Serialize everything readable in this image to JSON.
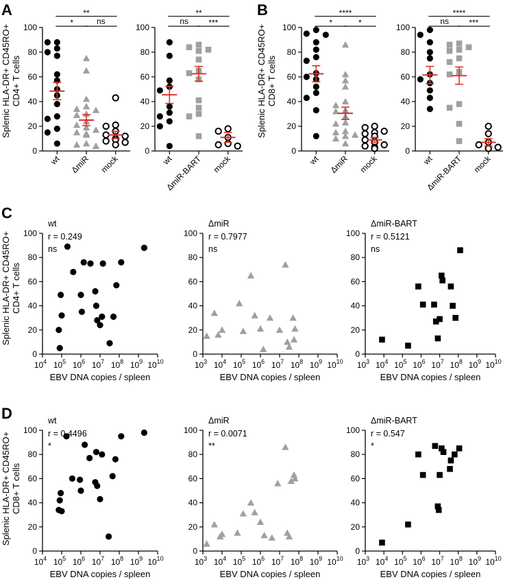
{
  "colors": {
    "black": "#000000",
    "gray": "#a0a0a0",
    "red": "#d9352a",
    "white": "#ffffff"
  },
  "panel_labels": {
    "A": "A",
    "B": "B",
    "C": "C",
    "D": "D"
  },
  "y_labels": {
    "A": [
      "Splenic HLA-DR+ CD45RO+",
      "CD4+ T cells"
    ],
    "B": [
      "Splenic HLA-DR+ CD45RO+",
      "CD8+ T cells"
    ],
    "C": [
      "Splenic HLA-DR+ CD45RO+",
      "CD4+ T cells"
    ],
    "D": [
      "Splenic HLA-DR+ CD45RO+",
      "CD8+ T cells"
    ]
  },
  "x_label": "EBV DNA copies / spleen",
  "chart_data": [
    {
      "id": "A1",
      "type": "scatter",
      "panel": "A",
      "ylim": [
        0,
        100
      ],
      "yticks": [
        0,
        20,
        40,
        60,
        80,
        100
      ],
      "categories": [
        "wt",
        "ΔmiR",
        "mock"
      ],
      "series": [
        {
          "name": "wt",
          "marker": "circle-filled",
          "color": "#000000",
          "mean": 48.5,
          "sem": 7,
          "values": [
            88,
            88,
            83,
            80,
            77,
            62,
            57,
            50,
            45,
            38,
            28,
            26,
            18,
            15,
            6
          ]
        },
        {
          "name": "ΔmiR",
          "marker": "triangle",
          "color": "#a0a0a0",
          "mean": 25,
          "sem": 4.5,
          "values": [
            75,
            65,
            42,
            36,
            34,
            33,
            30,
            29,
            24,
            21,
            19,
            17,
            15,
            14,
            13,
            6,
            5,
            4
          ]
        },
        {
          "name": "mock",
          "marker": "circle-open",
          "color": "#000000",
          "mean": 13,
          "sem": 3,
          "values": [
            43,
            21,
            20,
            16,
            13,
            12,
            10,
            9,
            8,
            7,
            5
          ]
        }
      ],
      "comparisons": [
        {
          "from": 0,
          "to": 2,
          "label": "**",
          "y": 109
        },
        {
          "from": 0,
          "to": 1,
          "label": "*",
          "y": 101
        },
        {
          "from": 1,
          "to": 2,
          "label": "ns",
          "y": 101
        }
      ]
    },
    {
      "id": "A2",
      "type": "scatter",
      "panel": "A",
      "ylim": [
        0,
        100
      ],
      "yticks": [
        0,
        20,
        40,
        60,
        80,
        100
      ],
      "categories": [
        "wt",
        "ΔmiR-BART",
        "mock"
      ],
      "series": [
        {
          "name": "wt",
          "marker": "circle-filled",
          "color": "#000000",
          "mean": 45.5,
          "sem": 7,
          "values": [
            88,
            77,
            57,
            52,
            49,
            36,
            31,
            28,
            24,
            20,
            4
          ]
        },
        {
          "name": "ΔmiR-BART",
          "marker": "square",
          "color": "#a0a0a0",
          "mean": 62.5,
          "sem": 6,
          "values": [
            86,
            84,
            82,
            81,
            74,
            65,
            63,
            58,
            41,
            35,
            30,
            28,
            12
          ]
        },
        {
          "name": "mock",
          "marker": "circle-open",
          "color": "#000000",
          "mean": 11,
          "sem": 4,
          "values": [
            18,
            16,
            11,
            6,
            5,
            4
          ]
        }
      ],
      "comparisons": [
        {
          "from": 0,
          "to": 2,
          "label": "**",
          "y": 109
        },
        {
          "from": 0,
          "to": 1,
          "label": "ns",
          "y": 101
        },
        {
          "from": 1,
          "to": 2,
          "label": "***",
          "y": 101
        }
      ]
    },
    {
      "id": "B1",
      "type": "scatter",
      "panel": "B",
      "ylim": [
        0,
        100
      ],
      "yticks": [
        0,
        20,
        40,
        60,
        80,
        100
      ],
      "categories": [
        "wt",
        "ΔmiR",
        "mock"
      ],
      "series": [
        {
          "name": "wt",
          "marker": "circle-filled",
          "color": "#000000",
          "mean": 62.5,
          "sem": 6.5,
          "values": [
            98,
            95,
            94,
            88,
            82,
            76,
            73,
            63,
            60,
            58,
            52,
            47,
            43,
            33,
            12
          ]
        },
        {
          "name": "ΔmiR",
          "marker": "triangle",
          "color": "#a0a0a0",
          "mean": 30.5,
          "sem": 5,
          "values": [
            86,
            62,
            57,
            52,
            40,
            37,
            33,
            32,
            28,
            23,
            22,
            16,
            15,
            13,
            12,
            10,
            6
          ]
        },
        {
          "name": "mock",
          "marker": "circle-open",
          "color": "#000000",
          "mean": 9,
          "sem": 2,
          "values": [
            20,
            19,
            16,
            15,
            14,
            12,
            9,
            7,
            5,
            4,
            3,
            2
          ]
        }
      ],
      "comparisons": [
        {
          "from": 0,
          "to": 2,
          "label": "****",
          "y": 109
        },
        {
          "from": 0,
          "to": 1,
          "label": "*",
          "y": 101
        },
        {
          "from": 1,
          "to": 2,
          "label": "*",
          "y": 101
        }
      ]
    },
    {
      "id": "B2",
      "type": "scatter",
      "panel": "B",
      "ylim": [
        0,
        100
      ],
      "yticks": [
        0,
        20,
        40,
        60,
        80,
        100
      ],
      "categories": [
        "wt",
        "ΔmiR-BART",
        "mock"
      ],
      "series": [
        {
          "name": "wt",
          "marker": "circle-filled",
          "color": "#000000",
          "mean": 61.5,
          "sem": 7,
          "values": [
            98,
            94,
            88,
            80,
            75,
            62,
            58,
            55,
            49,
            43,
            34
          ]
        },
        {
          "name": "ΔmiR-BART",
          "marker": "square",
          "color": "#a0a0a0",
          "mean": 61,
          "sem": 7,
          "values": [
            87,
            86,
            84,
            82,
            81,
            75,
            72,
            64,
            62,
            38,
            35,
            22,
            8
          ]
        },
        {
          "name": "mock",
          "marker": "circle-open",
          "color": "#000000",
          "mean": 7,
          "sem": 3,
          "values": [
            20,
            14,
            7,
            5,
            3,
            2
          ]
        }
      ],
      "comparisons": [
        {
          "from": 0,
          "to": 2,
          "label": "****",
          "y": 109
        },
        {
          "from": 0,
          "to": 1,
          "label": "ns",
          "y": 101
        },
        {
          "from": 1,
          "to": 2,
          "label": "***",
          "y": 101
        }
      ]
    },
    {
      "id": "C1",
      "type": "scatter",
      "panel": "C",
      "title": "wt",
      "r_label": "r = 0.249",
      "sig": "ns",
      "xscale": "log10",
      "xlim": [
        4,
        10
      ],
      "ylim": [
        0,
        100
      ],
      "yticks": [
        0,
        20,
        40,
        60,
        80,
        100
      ],
      "xticks_exp": [
        "4",
        "5",
        "6",
        "7",
        "8",
        "9",
        "10"
      ],
      "marker": "circle-filled",
      "color": "#000000",
      "points": [
        [
          4.85,
          20
        ],
        [
          4.9,
          5
        ],
        [
          4.95,
          49
        ],
        [
          5.0,
          32
        ],
        [
          5.3,
          89
        ],
        [
          5.6,
          68
        ],
        [
          6.0,
          49
        ],
        [
          6.05,
          35
        ],
        [
          6.15,
          76
        ],
        [
          6.5,
          75
        ],
        [
          6.75,
          52
        ],
        [
          6.8,
          40
        ],
        [
          6.85,
          28
        ],
        [
          7.0,
          24
        ],
        [
          7.1,
          31
        ],
        [
          7.15,
          75
        ],
        [
          7.5,
          9
        ],
        [
          7.7,
          31
        ],
        [
          7.85,
          57
        ],
        [
          8.1,
          76
        ],
        [
          9.3,
          88
        ]
      ]
    },
    {
      "id": "C2",
      "type": "scatter",
      "panel": "C",
      "title": "ΔmiR",
      "r_label": "r = 0.7977",
      "sig": "ns",
      "xscale": "log10",
      "xlim": [
        3,
        10
      ],
      "ylim": [
        0,
        100
      ],
      "yticks": [
        0,
        20,
        40,
        60,
        80,
        100
      ],
      "xticks_exp": [
        "3",
        "4",
        "5",
        "6",
        "7",
        "8",
        "9",
        "10"
      ],
      "marker": "triangle",
      "color": "#a0a0a0",
      "points": [
        [
          3.2,
          15
        ],
        [
          3.6,
          34
        ],
        [
          3.8,
          16
        ],
        [
          4.0,
          20
        ],
        [
          4.9,
          42
        ],
        [
          5.1,
          19
        ],
        [
          5.5,
          65
        ],
        [
          5.7,
          32
        ],
        [
          6.0,
          21
        ],
        [
          6.15,
          4
        ],
        [
          6.5,
          30
        ],
        [
          7.0,
          20
        ],
        [
          7.3,
          74
        ],
        [
          7.4,
          10
        ],
        [
          7.5,
          6
        ],
        [
          7.7,
          30
        ],
        [
          7.75,
          12
        ],
        [
          7.8,
          21
        ]
      ]
    },
    {
      "id": "C3",
      "type": "scatter",
      "panel": "C",
      "title": "ΔmiR-BART",
      "r_label": "r = 0.5121",
      "sig": "ns",
      "xscale": "log10",
      "xlim": [
        3,
        10
      ],
      "ylim": [
        0,
        100
      ],
      "yticks": [
        0,
        20,
        40,
        60,
        80,
        100
      ],
      "xticks_exp": [
        "3",
        "4",
        "5",
        "6",
        "7",
        "8",
        "9",
        "10"
      ],
      "marker": "square",
      "color": "#000000",
      "points": [
        [
          3.9,
          12
        ],
        [
          5.3,
          7
        ],
        [
          5.85,
          56
        ],
        [
          6.1,
          41
        ],
        [
          6.7,
          41
        ],
        [
          6.8,
          27
        ],
        [
          6.9,
          13
        ],
        [
          7.0,
          29
        ],
        [
          7.1,
          65
        ],
        [
          7.15,
          61
        ],
        [
          7.6,
          56
        ],
        [
          7.7,
          40
        ],
        [
          7.85,
          30
        ],
        [
          8.1,
          86
        ]
      ]
    },
    {
      "id": "D1",
      "type": "scatter",
      "panel": "D",
      "title": "wt",
      "r_label": "r = 0.4496",
      "sig": "*",
      "xscale": "log10",
      "xlim": [
        4,
        10
      ],
      "ylim": [
        0,
        100
      ],
      "yticks": [
        0,
        20,
        40,
        60,
        80,
        100
      ],
      "xticks_exp": [
        "4",
        "5",
        "6",
        "7",
        "8",
        "9",
        "10"
      ],
      "marker": "circle-filled",
      "color": "#000000",
      "points": [
        [
          4.85,
          34
        ],
        [
          4.9,
          42
        ],
        [
          4.95,
          48
        ],
        [
          5.0,
          33
        ],
        [
          5.25,
          95
        ],
        [
          5.55,
          60
        ],
        [
          5.95,
          59
        ],
        [
          6.0,
          50
        ],
        [
          6.2,
          88
        ],
        [
          6.45,
          77
        ],
        [
          6.75,
          57
        ],
        [
          6.8,
          82
        ],
        [
          6.85,
          54
        ],
        [
          7.0,
          43
        ],
        [
          7.1,
          80
        ],
        [
          7.45,
          12
        ],
        [
          7.65,
          62
        ],
        [
          7.8,
          76
        ],
        [
          8.1,
          95
        ],
        [
          9.3,
          98
        ]
      ]
    },
    {
      "id": "D2",
      "type": "scatter",
      "panel": "D",
      "title": "ΔmiR",
      "r_label": "r = 0.0071",
      "sig": "**",
      "xscale": "log10",
      "xlim": [
        3,
        10
      ],
      "ylim": [
        0,
        100
      ],
      "yticks": [
        0,
        20,
        40,
        60,
        80,
        100
      ],
      "xticks_exp": [
        "3",
        "4",
        "5",
        "6",
        "7",
        "8",
        "9",
        "10"
      ],
      "marker": "triangle",
      "color": "#a0a0a0",
      "points": [
        [
          3.2,
          6
        ],
        [
          3.6,
          22
        ],
        [
          3.9,
          12
        ],
        [
          4.0,
          14
        ],
        [
          4.8,
          15
        ],
        [
          5.1,
          31
        ],
        [
          5.5,
          40
        ],
        [
          5.7,
          32
        ],
        [
          6.0,
          24
        ],
        [
          6.2,
          13
        ],
        [
          6.6,
          11
        ],
        [
          6.9,
          56
        ],
        [
          7.3,
          86
        ],
        [
          7.4,
          15
        ],
        [
          7.5,
          12
        ],
        [
          7.6,
          58
        ],
        [
          7.75,
          63
        ],
        [
          7.8,
          60
        ]
      ]
    },
    {
      "id": "D3",
      "type": "scatter",
      "panel": "D",
      "title": "ΔmiR-BART",
      "r_label": "r = 0.547",
      "sig": "*",
      "xscale": "log10",
      "xlim": [
        3,
        10
      ],
      "ylim": [
        0,
        100
      ],
      "yticks": [
        0,
        20,
        40,
        60,
        80,
        100
      ],
      "xticks_exp": [
        "3",
        "4",
        "5",
        "6",
        "7",
        "8",
        "9",
        "10"
      ],
      "marker": "square",
      "color": "#000000",
      "points": [
        [
          3.9,
          7
        ],
        [
          5.3,
          22
        ],
        [
          5.85,
          80
        ],
        [
          6.1,
          63
        ],
        [
          6.75,
          87
        ],
        [
          6.9,
          37
        ],
        [
          6.95,
          34
        ],
        [
          7.0,
          63
        ],
        [
          7.1,
          85
        ],
        [
          7.2,
          82
        ],
        [
          7.55,
          68
        ],
        [
          7.6,
          75
        ],
        [
          7.8,
          80
        ],
        [
          8.05,
          85
        ]
      ]
    }
  ]
}
